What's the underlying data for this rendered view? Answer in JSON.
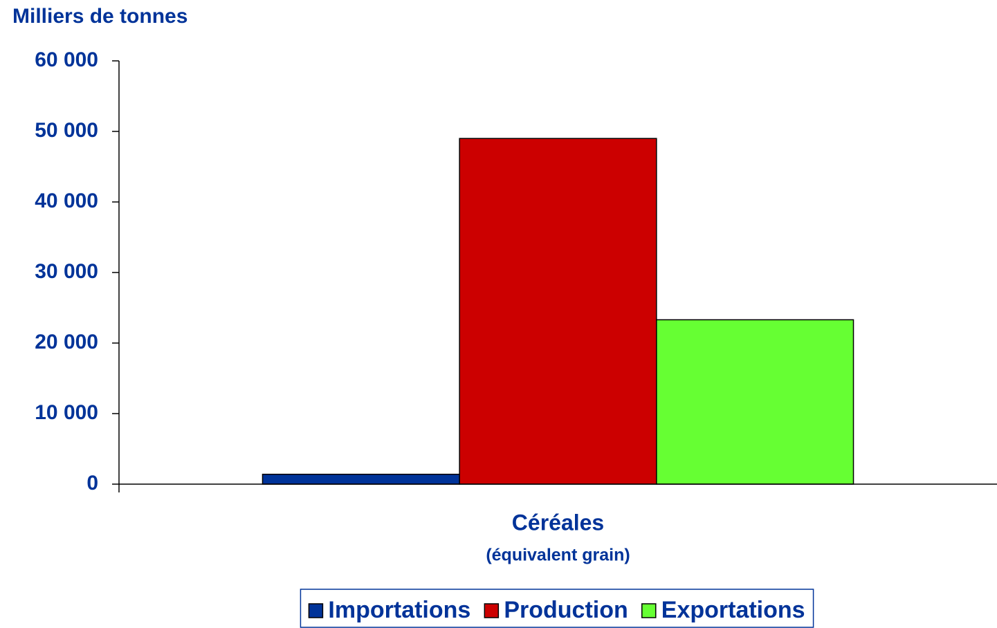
{
  "chart_data": {
    "type": "bar",
    "y_axis_label": "Milliers de tonnes",
    "categories": [
      "Céréales"
    ],
    "category_note": "(équivalent grain)",
    "series": [
      {
        "name": "Importations",
        "color": "#003399",
        "values": [
          1400
        ]
      },
      {
        "name": "Production",
        "color": "#cc0000",
        "values": [
          49000
        ]
      },
      {
        "name": "Exportations",
        "color": "#66ff33",
        "values": [
          23300
        ]
      }
    ],
    "ylim": [
      0,
      60000
    ],
    "yticks": [
      0,
      {
        "value": 10000,
        "label": "10 000"
      },
      {
        "value": 20000,
        "label": "20 000"
      },
      {
        "value": 30000,
        "label": "30 000"
      },
      {
        "value": 40000,
        "label": "40 000"
      },
      {
        "value": 50000,
        "label": "50 000"
      },
      {
        "value": 60000,
        "label": "60 000"
      }
    ],
    "legend": "bottom"
  }
}
